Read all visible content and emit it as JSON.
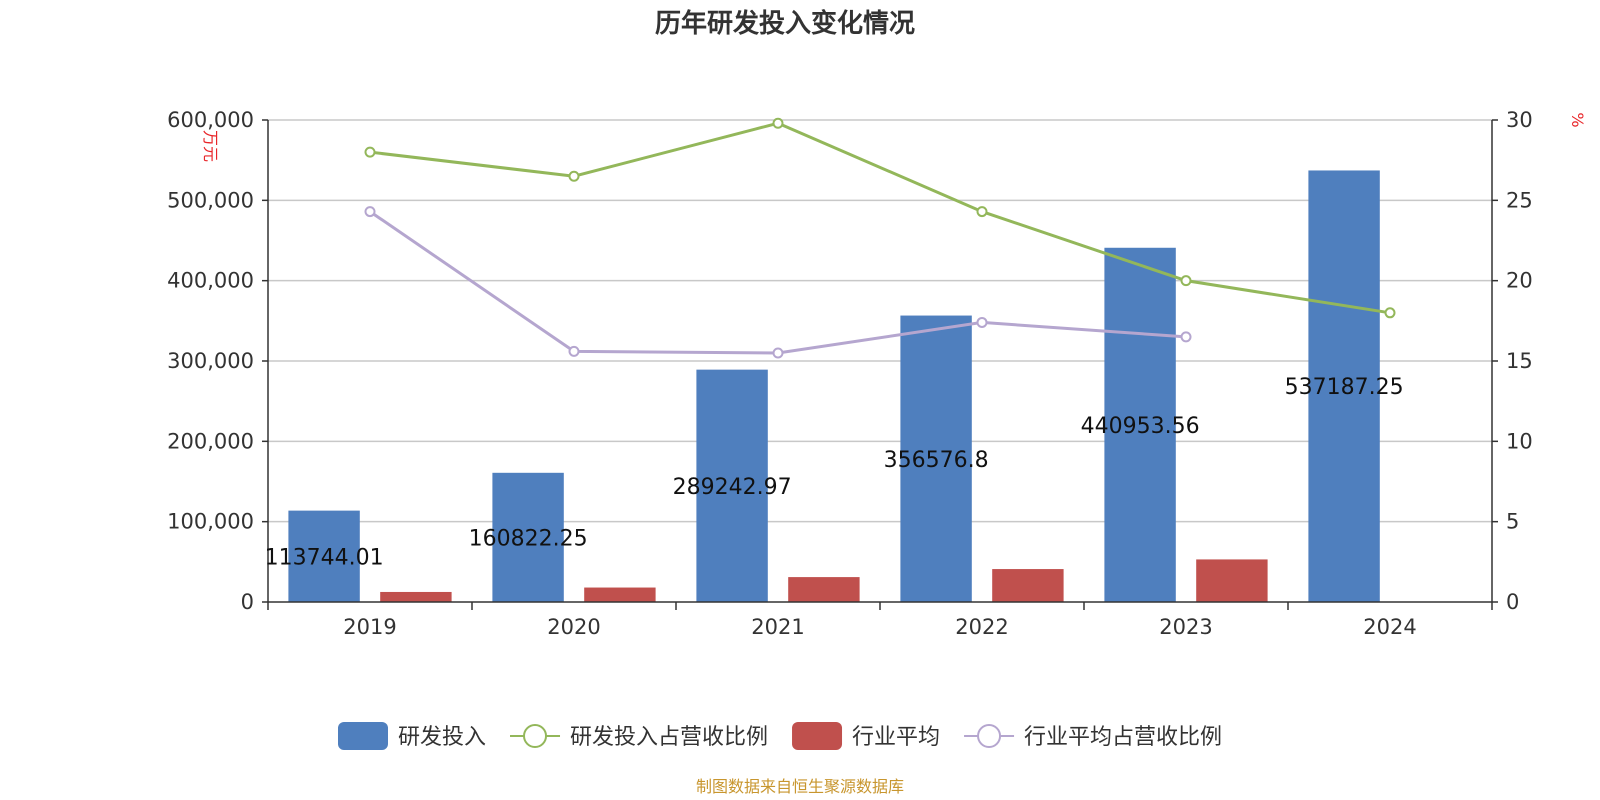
{
  "chart_data": {
    "type": "bar",
    "title": "历年研发投入变化情况",
    "categories": [
      "2019",
      "2020",
      "2021",
      "2022",
      "2023",
      "2024"
    ],
    "y_left": {
      "unit": "万元",
      "range": [
        0,
        600000
      ],
      "ticks": [
        "0",
        "100,000",
        "200,000",
        "300,000",
        "400,000",
        "500,000",
        "600,000"
      ]
    },
    "y_right": {
      "unit": "%",
      "range": [
        0,
        30
      ],
      "ticks": [
        "0",
        "5",
        "10",
        "15",
        "20",
        "25",
        "30"
      ]
    },
    "grid": true,
    "legend_position": "bottom",
    "series": [
      {
        "name": "研发投入",
        "type": "bar",
        "axis": "left",
        "color": "#4f7fbe",
        "values": [
          113744.01,
          160822.25,
          289242.97,
          356576.8,
          440953.56,
          537187.25
        ],
        "labels": [
          "113744.01",
          "160822.25",
          "289242.97",
          "356576.8",
          "440953.56",
          "537187.25"
        ]
      },
      {
        "name": "研发投入占营收比例",
        "type": "line",
        "axis": "right",
        "color": "#93b75a",
        "values": [
          28.0,
          26.5,
          29.8,
          24.3,
          20.0,
          18.0
        ]
      },
      {
        "name": "行业平均",
        "type": "bar",
        "axis": "left",
        "color": "#c0504d",
        "values": [
          12500,
          18000,
          31000,
          41000,
          53000,
          null
        ]
      },
      {
        "name": "行业平均占营收比例",
        "type": "line",
        "axis": "right",
        "color": "#b5a6cf",
        "values": [
          24.3,
          15.6,
          15.5,
          17.4,
          16.5,
          null
        ]
      }
    ]
  },
  "source": "制图数据来自恒生聚源数据库"
}
